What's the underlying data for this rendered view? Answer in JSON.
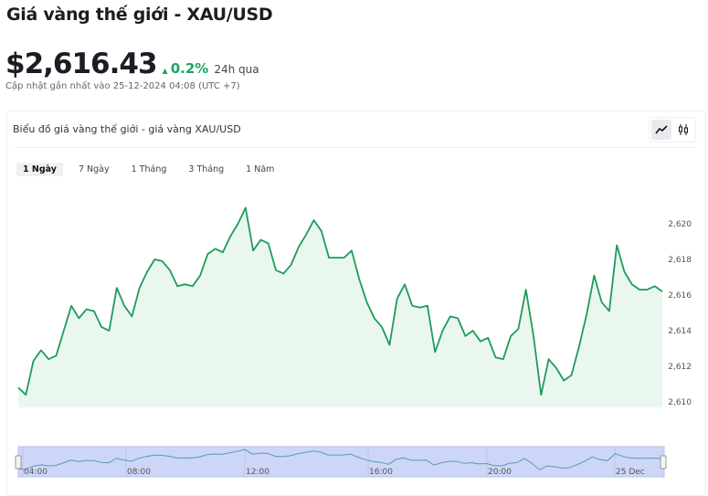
{
  "header": {
    "title": "Giá vàng thế giới - XAU/USD",
    "price": "$2,616.43",
    "change": "0.2%",
    "period": "24h qua",
    "updated": "Cập nhật gần nhất vào 25-12-2024 04:08 (UTC +7)"
  },
  "card": {
    "title": "Biểu đồ giá vàng thế giới - giá vàng XAU/USD",
    "chart_types": [
      {
        "icon": "line-chart-icon",
        "active": true
      },
      {
        "icon": "candlestick-icon",
        "active": false
      }
    ]
  },
  "tabs": [
    {
      "label": "1 Ngày",
      "active": true
    },
    {
      "label": "7 Ngày"
    },
    {
      "label": "1 Tháng"
    },
    {
      "label": "3 Tháng"
    },
    {
      "label": "1 Năm"
    }
  ],
  "colors": {
    "line": "#1f9a5c",
    "fill": "#e9f7ee",
    "up": "#1fa564",
    "navigator": "#cdd6f7",
    "navigator_line": "#5a9bb0"
  },
  "chart_data": {
    "type": "area",
    "title": "",
    "xlabel": "",
    "ylabel": "",
    "ylim": [
      2609.5,
      2621.5
    ],
    "y_ticks": [
      "2,610",
      "2,612",
      "2,614",
      "2,616",
      "2,618",
      "2,620"
    ],
    "y_tick_values": [
      2610,
      2612,
      2614,
      2616,
      2618,
      2620
    ],
    "x_ticks": [
      "04:00",
      "08:00",
      "12:00",
      "16:00",
      "20:00",
      "25 Dec"
    ],
    "grid": false,
    "values": [
      2610.8,
      2610.4,
      2612.3,
      2612.9,
      2612.4,
      2612.6,
      2614.0,
      2615.4,
      2614.7,
      2615.2,
      2615.1,
      2614.2,
      2614.0,
      2616.4,
      2615.4,
      2614.8,
      2616.4,
      2617.3,
      2618.0,
      2617.9,
      2617.4,
      2616.5,
      2616.6,
      2616.5,
      2617.1,
      2618.3,
      2618.6,
      2618.4,
      2619.3,
      2620.0,
      2620.9,
      2618.5,
      2619.1,
      2618.9,
      2617.4,
      2617.2,
      2617.7,
      2618.7,
      2619.4,
      2620.2,
      2619.6,
      2618.1,
      2618.1,
      2618.1,
      2618.5,
      2616.9,
      2615.6,
      2614.7,
      2614.2,
      2613.2,
      2615.8,
      2616.6,
      2615.4,
      2615.3,
      2615.4,
      2612.8,
      2614.0,
      2614.8,
      2614.7,
      2613.7,
      2614.0,
      2613.4,
      2613.6,
      2612.5,
      2612.4,
      2613.7,
      2614.1,
      2616.3,
      2613.7,
      2610.4,
      2612.4,
      2611.9,
      2611.2,
      2611.5,
      2613.1,
      2614.9,
      2617.1,
      2615.6,
      2615.1,
      2618.8,
      2617.3,
      2616.6,
      2616.3,
      2616.3,
      2616.5,
      2616.2
    ]
  }
}
